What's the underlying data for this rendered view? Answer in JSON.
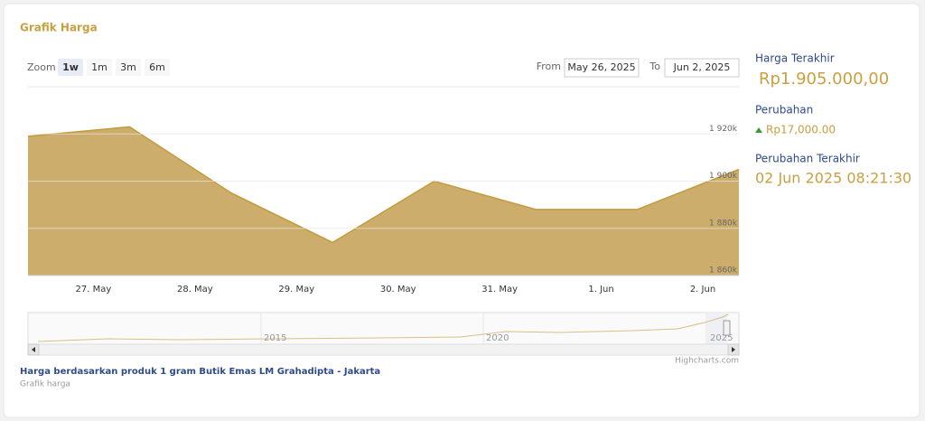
{
  "header": {
    "title": "Grafik Harga"
  },
  "zoom": {
    "label": "Zoom",
    "buttons": [
      "1w",
      "1m",
      "3m",
      "6m"
    ],
    "selected": 0
  },
  "range": {
    "from_label": "From",
    "from": "May 26, 2025",
    "to_label": "To",
    "to": "Jun 2, 2025"
  },
  "chart_data": {
    "type": "area",
    "categories": [
      null,
      "27. May",
      "28. May",
      "29. May",
      "30. May",
      "31. May",
      "1. Jun",
      "2. Jun"
    ],
    "values": [
      1919000,
      1923000,
      1895000,
      1874000,
      1900000,
      1888000,
      1888000,
      1905000
    ],
    "color": "#cdad6b",
    "line_color": "#c39a3c",
    "ylim": [
      1860000,
      1940000
    ],
    "yticks": [
      {
        "value": 1860000,
        "label": "1 860k"
      },
      {
        "value": 1880000,
        "label": "1 880k"
      },
      {
        "value": 1900000,
        "label": "1 900k"
      },
      {
        "value": 1920000,
        "label": "1 920k"
      }
    ],
    "grid": true
  },
  "navigator": {
    "labels": [
      "2015",
      "2020",
      "2025"
    ]
  },
  "credits": "Highcharts.com",
  "info": {
    "last_price_label": "Harga Terakhir",
    "last_price": "Rp1.905.000,00",
    "change_label": "Perubahan",
    "change": "Rp17,000.00",
    "last_change_label": "Perubahan Terakhir",
    "last_change": "02 Jun 2025 08:21:30"
  },
  "footer": {
    "caption": "Harga berdasarkan produk 1 gram Butik Emas LM Grahadipta - Jakarta",
    "subcaption": "Grafik harga"
  }
}
